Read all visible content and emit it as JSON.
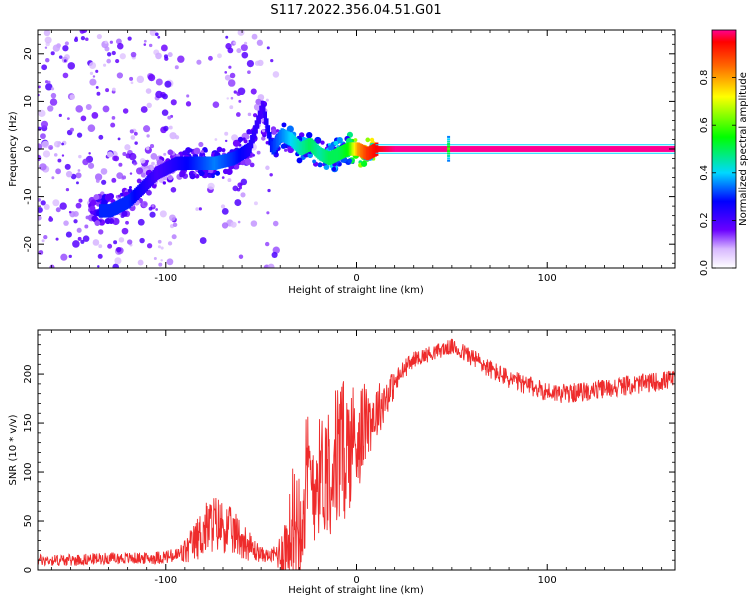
{
  "title": "S117.2022.356.04.51.G01",
  "chart_data": [
    {
      "type": "heatmap",
      "name": "spectrogram",
      "xlabel": "Height of straight line (km)",
      "ylabel": "Frequency (Hz)",
      "xlim": [
        -167,
        167
      ],
      "ylim": [
        -25,
        25
      ],
      "x_ticks": [
        -100,
        0,
        100
      ],
      "y_ticks": [
        -20,
        -10,
        0,
        10,
        20
      ],
      "colorbar": {
        "label": "Normalized spectral amplitude",
        "range": [
          0,
          1
        ],
        "ticks": [
          "0.0",
          "0.2",
          "0.4",
          "0.6",
          "0.8"
        ],
        "tick_values": [
          0.0,
          0.2,
          0.4,
          0.6,
          0.8
        ]
      },
      "ridge": {
        "x": [
          -130,
          -120,
          -105,
          -95,
          -85,
          -75,
          -65,
          -57,
          -50,
          -45,
          -40,
          -35,
          -30,
          -25,
          -20,
          -15,
          -10,
          -5,
          0,
          5,
          10,
          20,
          48,
          90,
          167
        ],
        "frequency": [
          -13,
          -11,
          -5,
          -3,
          -3,
          -3,
          -2,
          0,
          9,
          0,
          3,
          2,
          0,
          1,
          -1,
          -2,
          -1,
          0,
          0,
          -1,
          0,
          0,
          0,
          0,
          0
        ],
        "amplitude": [
          0.3,
          0.3,
          0.2,
          0.25,
          0.3,
          0.35,
          0.3,
          0.25,
          0.2,
          0.3,
          0.35,
          0.4,
          0.45,
          0.5,
          0.45,
          0.5,
          0.5,
          0.55,
          0.8,
          0.9,
          0.95,
          1.0,
          1.0,
          1.0,
          1.0
        ]
      }
    },
    {
      "type": "line",
      "name": "snr",
      "xlabel": "Height of straight line (km)",
      "ylabel": "SNR (10 * v/v)",
      "xlim": [
        -167,
        167
      ],
      "ylim": [
        0,
        245
      ],
      "x_ticks": [
        -100,
        0,
        100
      ],
      "y_ticks": [
        0,
        50,
        100,
        150,
        200
      ],
      "color": "#ee2b2b",
      "x": [
        -167,
        -150,
        -130,
        -110,
        -95,
        -90,
        -85,
        -80,
        -75,
        -70,
        -65,
        -60,
        -55,
        -50,
        -45,
        -40,
        -35,
        -30,
        -27,
        -25,
        -20,
        -15,
        -10,
        -5,
        0,
        5,
        10,
        15,
        20,
        25,
        30,
        40,
        50,
        60,
        70,
        80,
        90,
        100,
        110,
        120,
        130,
        140,
        150,
        167
      ],
      "y": [
        10,
        10,
        12,
        12,
        14,
        18,
        28,
        40,
        48,
        45,
        38,
        32,
        22,
        16,
        14,
        18,
        30,
        60,
        80,
        90,
        95,
        105,
        115,
        125,
        135,
        150,
        160,
        175,
        190,
        205,
        215,
        222,
        228,
        218,
        205,
        195,
        188,
        182,
        180,
        182,
        185,
        188,
        190,
        195
      ],
      "amp": [
        6,
        6,
        6,
        6,
        8,
        14,
        20,
        28,
        30,
        28,
        24,
        20,
        14,
        8,
        6,
        20,
        50,
        70,
        80,
        75,
        60,
        70,
        80,
        70,
        60,
        40,
        30,
        22,
        14,
        10,
        8,
        8,
        8,
        10,
        10,
        10,
        10,
        10,
        10,
        10,
        10,
        10,
        10,
        10
      ]
    }
  ]
}
